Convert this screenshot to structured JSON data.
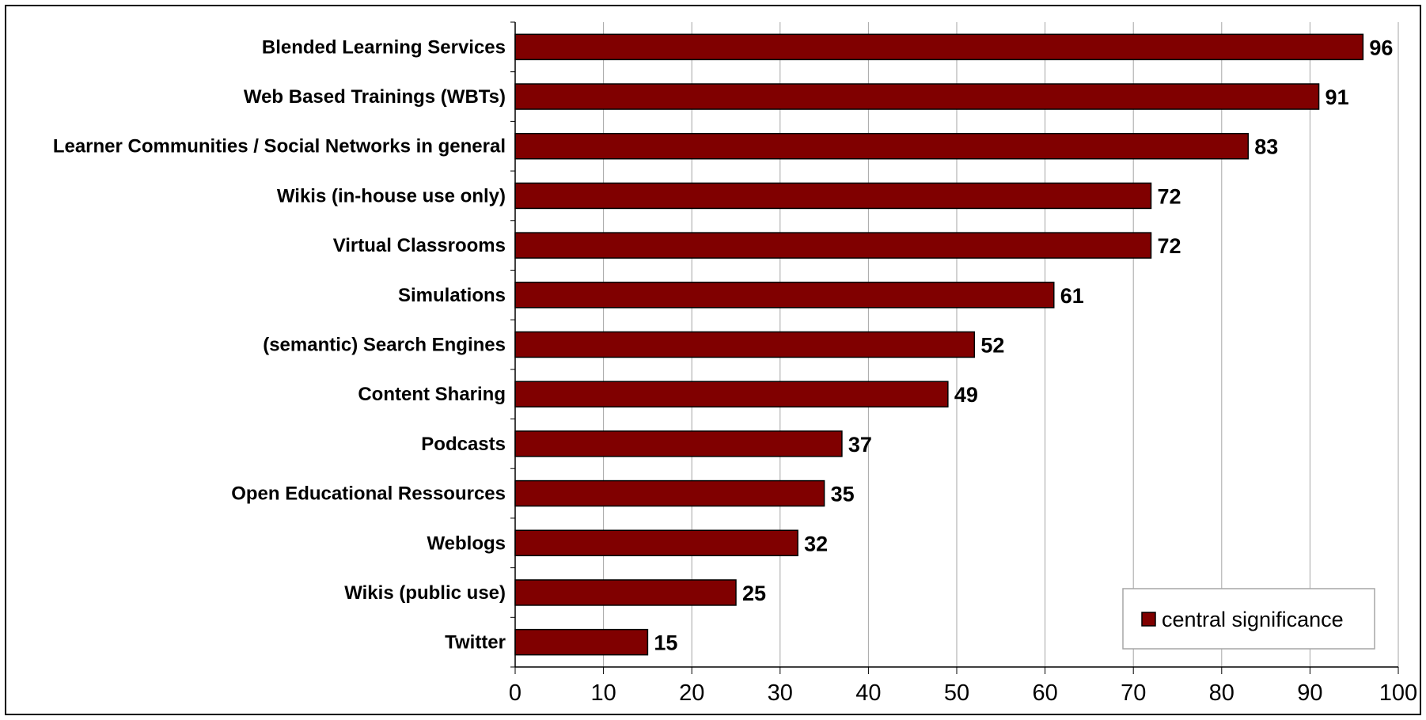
{
  "chart_data": {
    "type": "bar",
    "orientation": "horizontal",
    "title": "",
    "xlabel": "",
    "ylabel": "",
    "categories": [
      "Blended Learning Services",
      "Web Based Trainings (WBTs)",
      "Learner Communities / Social Networks in general",
      "Wikis (in-house use only)",
      "Virtual Classrooms",
      "Simulations",
      "(semantic) Search Engines",
      "Content Sharing",
      "Podcasts",
      "Open Educational Ressources",
      "Weblogs",
      "Wikis (public use)",
      "Twitter"
    ],
    "series": [
      {
        "name": "central significance",
        "color": "#800000",
        "values": [
          96,
          91,
          83,
          72,
          72,
          61,
          52,
          49,
          37,
          35,
          32,
          25,
          15
        ]
      }
    ],
    "xlim": [
      0,
      100
    ],
    "xticks": [
      0,
      10,
      20,
      30,
      40,
      50,
      60,
      70,
      80,
      90,
      100
    ],
    "grid": "vertical",
    "legend": {
      "position": "bottom-right",
      "entries": [
        "central significance"
      ]
    },
    "data_labels": true
  }
}
